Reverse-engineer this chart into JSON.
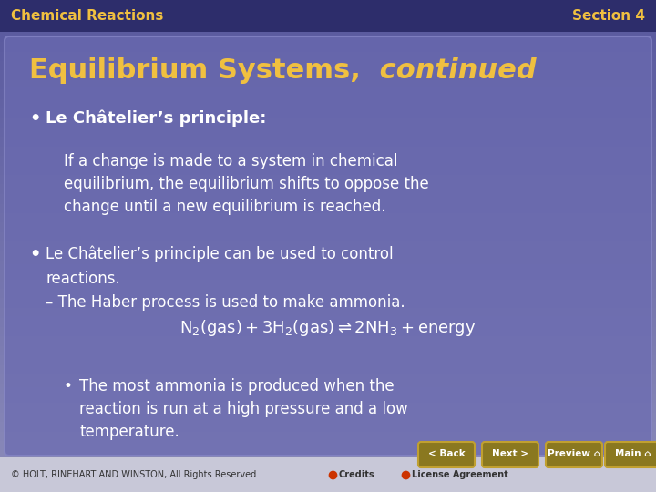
{
  "header_bg": "#2d2d6b",
  "header_text_left": "Chemical Reactions",
  "header_text_right": "Section 4",
  "header_text_color": "#f0c040",
  "main_bg_top": "#5a5aa0",
  "main_bg_bottom": "#8080c0",
  "content_box_color": "#6868b0",
  "title_text": "Equilibrium Systems,",
  "title_italic": " continued",
  "title_color": "#f0c040",
  "footer_bg": "#c8c8d8",
  "footer_text": "© HOLT, RINEHART AND WINSTON, All Rights Reserved",
  "footer_text_color": "#333333",
  "bullet1_bold": "Le Châtelier’s principle:",
  "bullet1_normal": "If a change is made to a system in chemical\nequilibrium, the equilibrium shifts to oppose the\nchange until a new equilibrium is reached.",
  "bullet2_text": "Le Châtelier’s principle can be used to control\nreactions.\n– The Haber process is used to make ammonia.",
  "equation": "N₂(gas) + 3H₂(gas) ⇌ 2NH₃ + energy",
  "sub_bullet": "The most ammonia is produced when the\nreaction is run at a high pressure and a low\ntemperature.",
  "text_color": "#ffffff",
  "button_color": "#9a8a30",
  "button_text_color": "#ffffff",
  "buttons": [
    "< Back",
    "Next >",
    "Preview",
    "Main"
  ],
  "credits_color": "#cc3300",
  "credits_text": "Credits",
  "license_text": "License Agreement"
}
